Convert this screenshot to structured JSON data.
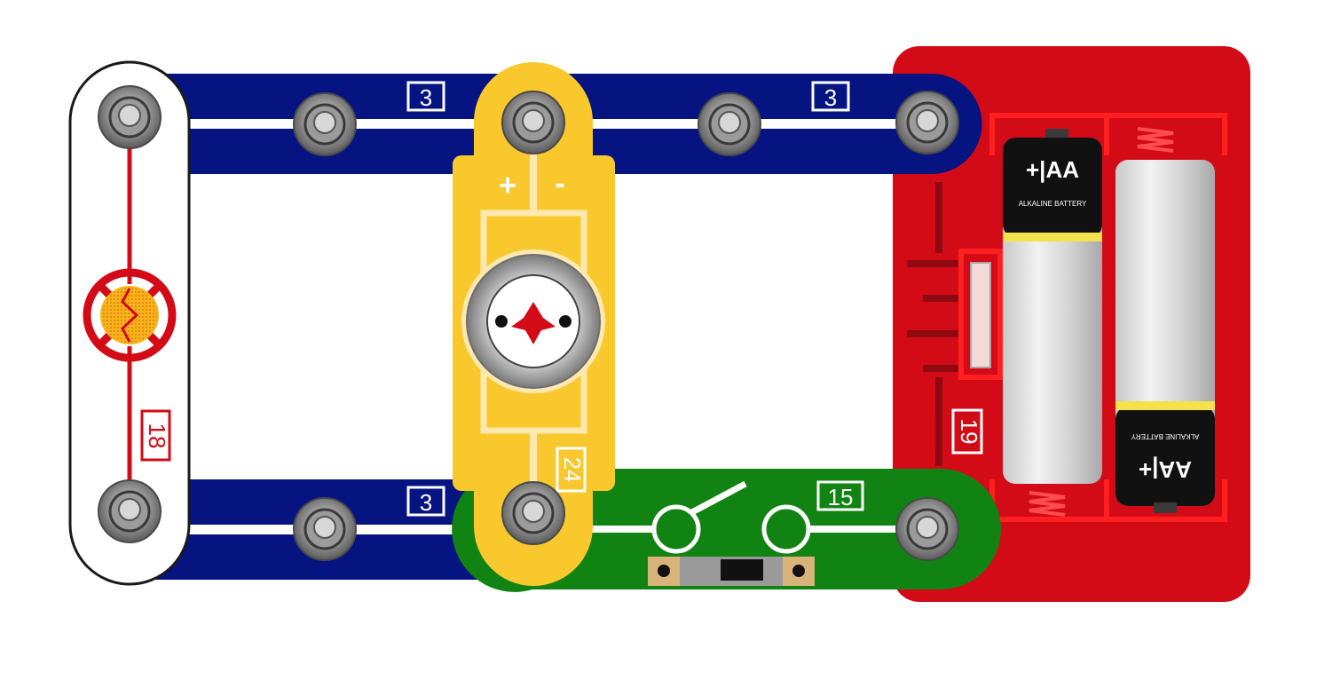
{
  "circuit": {
    "wires": [
      {
        "id": "wire-top-left",
        "label": "3"
      },
      {
        "id": "wire-top-right",
        "label": "3"
      },
      {
        "id": "wire-bottom-left",
        "label": "3"
      }
    ],
    "photoresistor": {
      "label": "18"
    },
    "motor": {
      "label": "24",
      "plus": "+",
      "minus": "-"
    },
    "switch": {
      "label": "15"
    },
    "battery_holder": {
      "label": "19",
      "battery_top_text": "+|AA",
      "battery_brand_text": "ALKALINE BATTERY",
      "battery_bottom_text": "AA|+"
    }
  },
  "colors": {
    "wire": "#051480",
    "photoresistor_base": "#ffffff",
    "motor_base": "#f9c82d",
    "switch_base": "#118312",
    "battery_base": "#d20b17",
    "trace_red": "#d20b17",
    "label_white": "#ffffff"
  }
}
